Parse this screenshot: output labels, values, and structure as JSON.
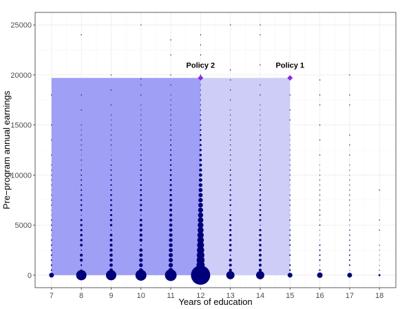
{
  "chart_data": {
    "type": "scatter",
    "xlabel": "Years of education",
    "ylabel": "Pre−program annual earnings",
    "xlim": [
      6.45,
      18.55
    ],
    "ylim": [
      -1250,
      26250
    ],
    "x_ticks": [
      7,
      8,
      9,
      10,
      11,
      12,
      13,
      14,
      15,
      16,
      17,
      18
    ],
    "y_ticks": [
      0,
      5000,
      10000,
      15000,
      20000,
      25000
    ],
    "y_tick_labels": [
      "0",
      "5000",
      "10000",
      "15000",
      "20000",
      "25000"
    ],
    "grid": true,
    "regions": [
      {
        "x": [
          7,
          12
        ],
        "y": [
          0,
          19700
        ],
        "color": "#9a9af6"
      },
      {
        "x": [
          12,
          15
        ],
        "y": [
          0,
          19700
        ],
        "color": "#cacaf8"
      }
    ],
    "annotations": [
      {
        "label": "Policy 2",
        "x": 12,
        "y": 19700,
        "color": "#8a2be2"
      },
      {
        "label": "Policy 1",
        "x": 15,
        "y": 19700,
        "color": "#8a2be2"
      }
    ],
    "point_color": "#00007a",
    "columns": [
      {
        "x": 7,
        "max": 11000,
        "zero_size": 3.5,
        "density": 0.35,
        "sparse": [
          12000,
          13500,
          15000,
          18000
        ]
      },
      {
        "x": 8,
        "max": 15000,
        "zero_size": 7.5,
        "density": 0.6,
        "sparse": [
          16500,
          18000,
          24000
        ]
      },
      {
        "x": 9,
        "max": 16000,
        "zero_size": 7.5,
        "density": 0.65,
        "sparse": [
          17000,
          18500,
          20000
        ]
      },
      {
        "x": 10,
        "max": 17000,
        "zero_size": 8,
        "density": 0.7,
        "sparse": [
          18000,
          19000,
          19600,
          25000
        ]
      },
      {
        "x": 11,
        "max": 18000,
        "zero_size": 8.5,
        "density": 0.8,
        "sparse": [
          19000,
          20000,
          22000,
          23500
        ]
      },
      {
        "x": 12,
        "max": 19000,
        "zero_size": 14,
        "density": 1.0,
        "sparse": [
          20000,
          21000,
          22000,
          23000,
          24000
        ]
      },
      {
        "x": 13,
        "max": 16500,
        "zero_size": 6,
        "density": 0.65,
        "sparse": [
          17500,
          18500,
          19500,
          20500,
          25000
        ]
      },
      {
        "x": 14,
        "max": 17000,
        "zero_size": 6,
        "density": 0.65,
        "sparse": [
          18000,
          19000,
          21000,
          24000,
          25000
        ]
      },
      {
        "x": 15,
        "max": 14000,
        "zero_size": 3.5,
        "density": 0.4,
        "sparse": [
          15500,
          16500,
          18000
        ]
      },
      {
        "x": 16,
        "max": 11000,
        "zero_size": 4,
        "density": 0.35,
        "sparse": [
          12000,
          13500,
          15000,
          17000,
          18000,
          19500
        ]
      },
      {
        "x": 17,
        "max": 11000,
        "zero_size": 3.5,
        "density": 0.3,
        "sparse": [
          12000,
          13000,
          14000,
          17000,
          18000,
          20000
        ]
      },
      {
        "x": 18,
        "max": 3200,
        "zero_size": 1.5,
        "density": 0.12,
        "sparse": [
          4500,
          5500,
          8500
        ]
      }
    ]
  }
}
